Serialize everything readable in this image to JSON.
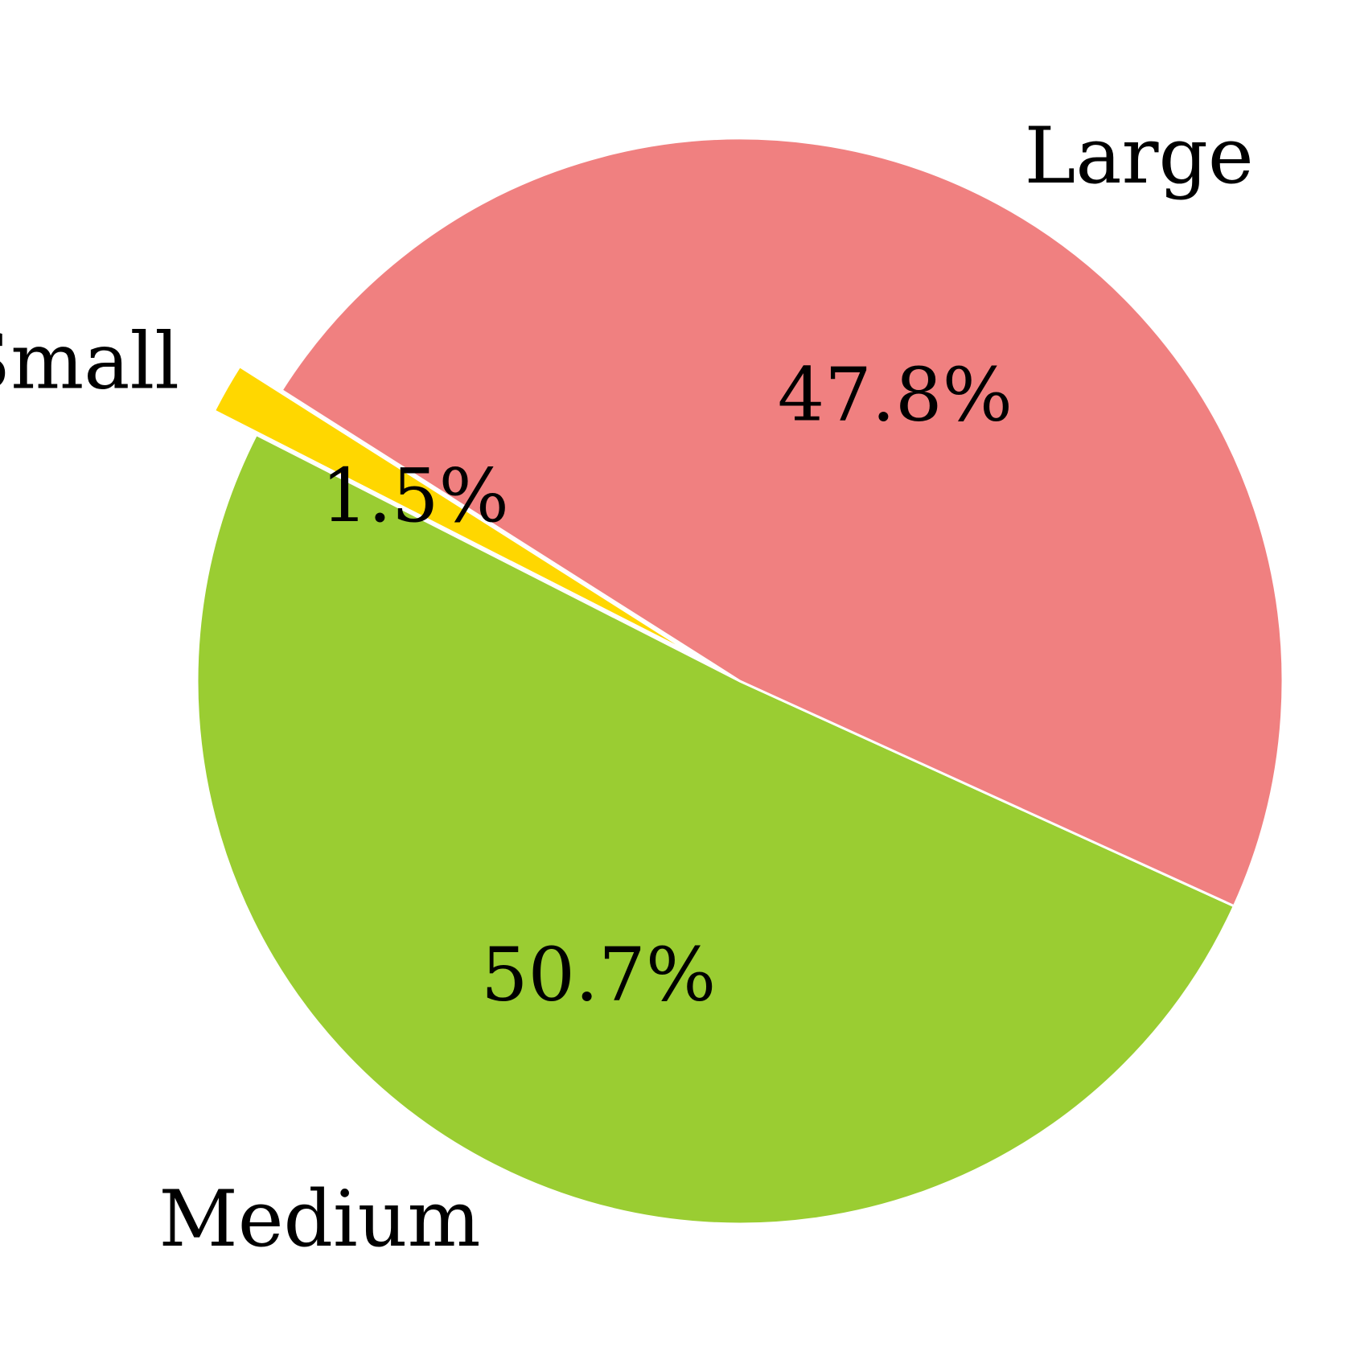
{
  "chart_data": {
    "type": "pie",
    "title": "",
    "start_angle_deg": 147.6,
    "direction": "counterclockwise",
    "slices": [
      {
        "label": "Small",
        "value": 1.5,
        "pct_label": "1.5%",
        "color": "#FFD700",
        "exploded": true
      },
      {
        "label": "Medium",
        "value": 50.7,
        "pct_label": "50.7%",
        "color": "#9ACD32",
        "exploded": false
      },
      {
        "label": "Large",
        "value": 47.8,
        "pct_label": "47.8%",
        "color": "#F08080",
        "exploded": false
      }
    ]
  }
}
